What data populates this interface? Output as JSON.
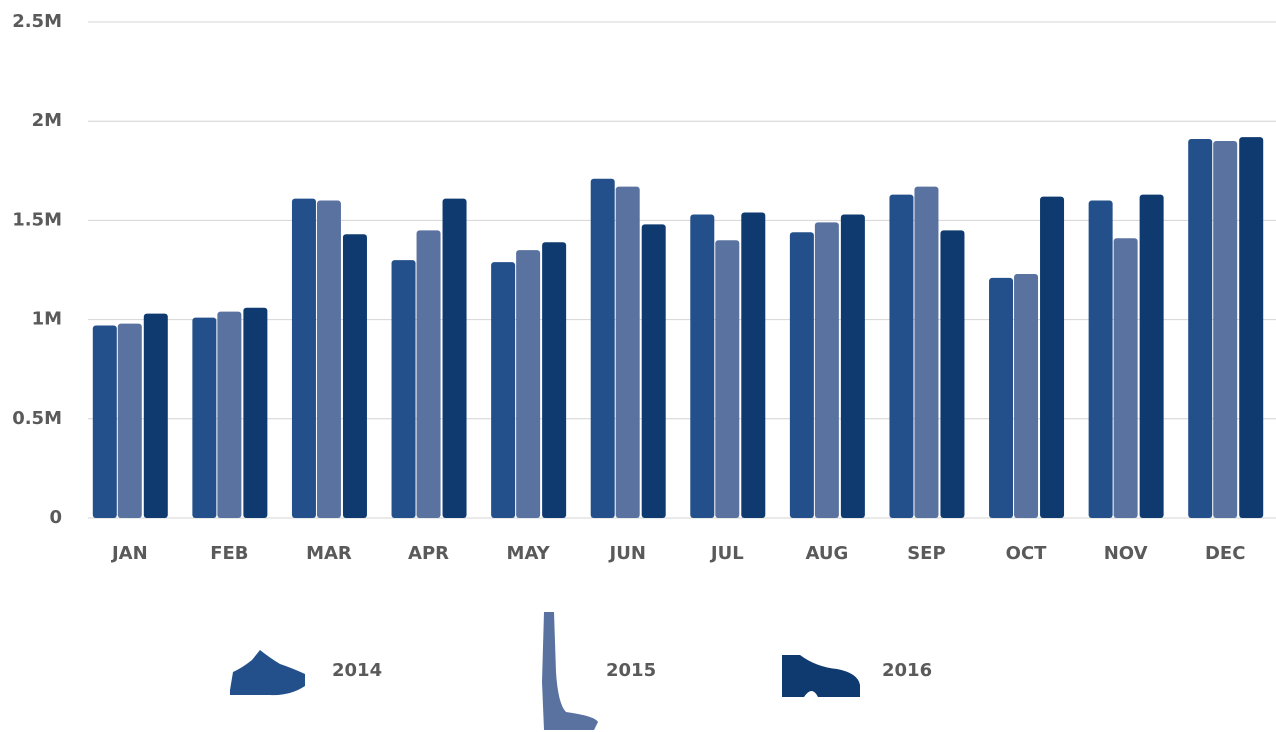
{
  "chart_data": {
    "type": "bar",
    "categories": [
      "JAN",
      "FEB",
      "MAR",
      "APR",
      "MAY",
      "JUN",
      "JUL",
      "AUG",
      "SEP",
      "OCT",
      "NOV",
      "DEC"
    ],
    "series": [
      {
        "name": "2014",
        "color": "#23508a",
        "values": [
          970000,
          1010000,
          1610000,
          1300000,
          1290000,
          1710000,
          1530000,
          1440000,
          1630000,
          1210000,
          1600000,
          1910000
        ]
      },
      {
        "name": "2015",
        "color": "#5a72a0",
        "values": [
          980000,
          1040000,
          1600000,
          1450000,
          1350000,
          1670000,
          1400000,
          1490000,
          1670000,
          1230000,
          1410000,
          1900000
        ]
      },
      {
        "name": "2016",
        "color": "#0e3a6f",
        "values": [
          1030000,
          1060000,
          1430000,
          1610000,
          1390000,
          1480000,
          1540000,
          1530000,
          1450000,
          1620000,
          1630000,
          1920000
        ]
      }
    ],
    "ylim": [
      0,
      2500000
    ],
    "yticks": [
      0,
      {
        "value": 500000,
        "label": "0.5M"
      },
      {
        "value": 1000000,
        "label": "1M"
      },
      {
        "value": 1500000,
        "label": "1.5M"
      },
      {
        "value": 2000000,
        "label": "2M"
      },
      {
        "value": 2500000,
        "label": "2.5M"
      }
    ],
    "grid": true
  }
}
